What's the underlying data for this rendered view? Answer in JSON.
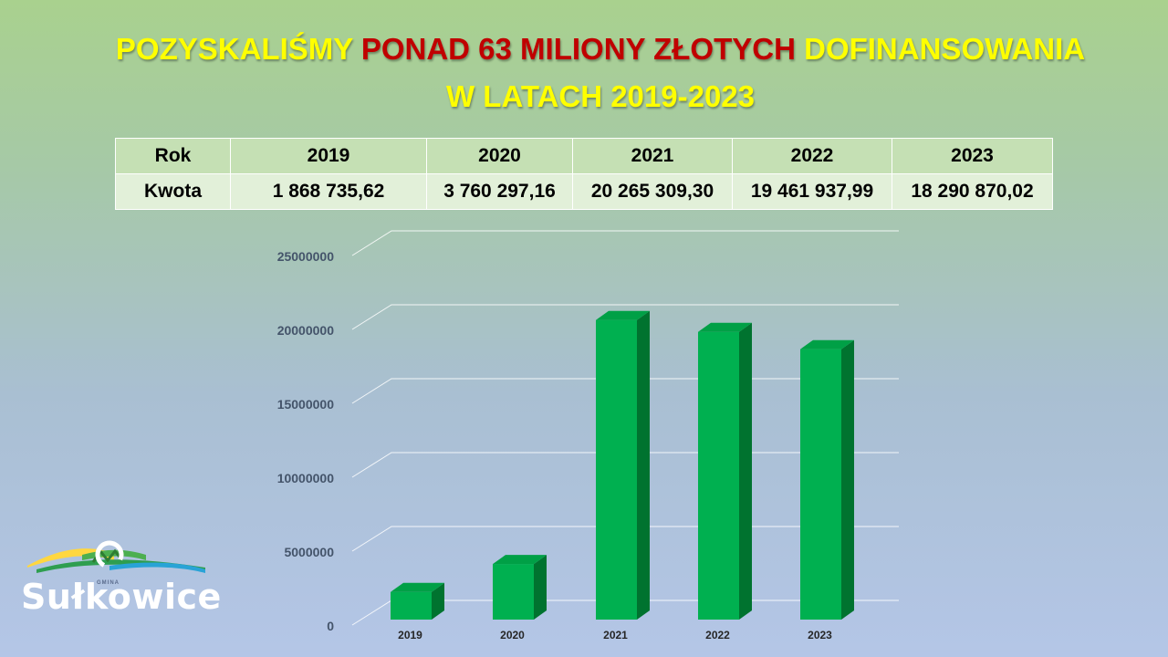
{
  "title": {
    "part1": "POZYSKALIŚMY ",
    "part2": "PONAD 63 MILIONY ZŁOTYCH",
    "part3": " DOFINANSOWANIA",
    "line2": "W LATACH 2019-2023"
  },
  "table": {
    "row_label_year": "Rok",
    "row_label_amount": "Kwota",
    "years": [
      "2019",
      "2020",
      "2021",
      "2022",
      "2023"
    ],
    "amounts": [
      "1 868 735,62",
      "3 760 297,16",
      "20 265 309,30",
      "19 461 937,99",
      "18 290 870,02"
    ]
  },
  "chart_data": {
    "type": "bar",
    "categories": [
      "2019",
      "2020",
      "2021",
      "2022",
      "2023"
    ],
    "values": [
      1868735.62,
      3760297.16,
      20265309.3,
      19461937.99,
      18290870.02
    ],
    "yticks": [
      "0",
      "5000000",
      "10000000",
      "15000000",
      "20000000",
      "25000000"
    ],
    "ylim": [
      0,
      25000000
    ],
    "grid": true,
    "three_d": true,
    "bar_color": "#00b050",
    "bar_side_color": "#00732f",
    "bar_top_color": "#00a046"
  },
  "logo": {
    "name": "Sułkowice",
    "subtitle": "GMINA"
  }
}
